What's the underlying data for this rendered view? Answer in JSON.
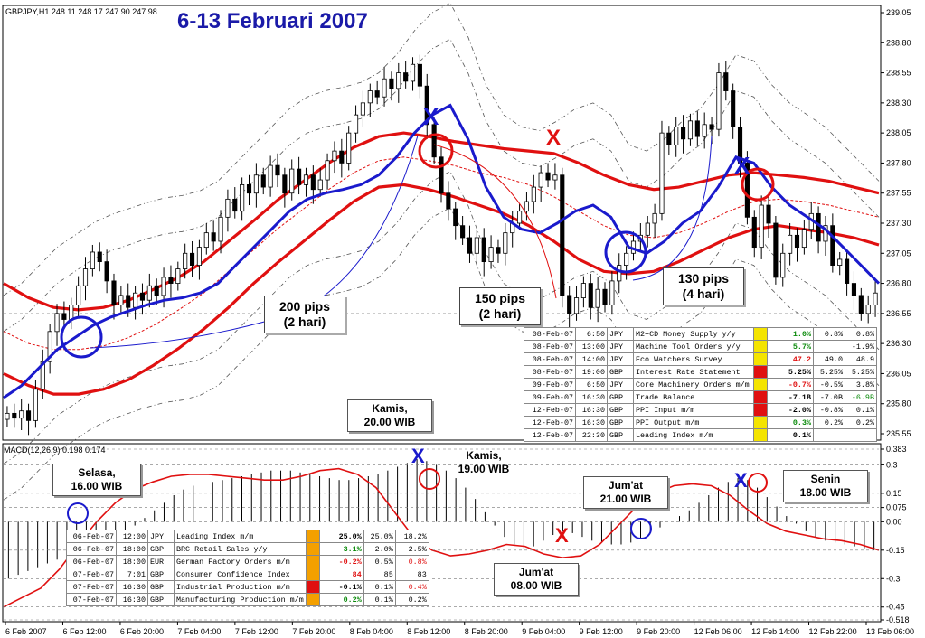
{
  "header": {
    "symbol_info": "GBPJPY,H1  248.11 248.17 247.90 247.98",
    "title": "6-13 Februari 2007",
    "macd_info": "MACD(12,26,9) 0.198 0.174"
  },
  "colors": {
    "price_axis_bg": "#ffffff",
    "candle_bull": "#ffffff",
    "candle_bear": "#000000",
    "ma_blue": "#1a1acc",
    "ma_red": "#e01010",
    "bands": "#555555",
    "macd_signal": "#e01010",
    "hist": "#000000",
    "marker_x_blue": "#1a1acc",
    "marker_x_red": "#e01010"
  },
  "chart_data": {
    "type": "candlestick",
    "price_axis": {
      "ticks": [
        "239.05",
        "238.80",
        "238.55",
        "238.30",
        "238.05",
        "237.80",
        "237.55",
        "237.30",
        "237.05",
        "236.80",
        "236.55",
        "236.30",
        "236.05",
        "235.80",
        "235.55"
      ],
      "ylim": [
        235.55,
        239.05
      ]
    },
    "macd_axis": {
      "ticks": [
        "0.383",
        "0.3",
        "0.15",
        "0.075",
        "0.00",
        "-0.15",
        "-0.3",
        "-0.45",
        "-0.518"
      ],
      "ylim": [
        -0.518,
        0.383
      ]
    },
    "time_axis": {
      "labels": [
        "6 Feb 2007",
        "6 Feb 12:00",
        "6 Feb 20:00",
        "7 Feb 04:00",
        "7 Feb 12:00",
        "7 Feb 20:00",
        "8 Feb 04:00",
        "8 Feb 12:00",
        "8 Feb 20:00",
        "9 Feb 04:00",
        "9 Feb 12:00",
        "9 Feb 20:00",
        "12 Feb 06:00",
        "12 Feb 14:00",
        "12 Feb 22:00",
        "13 Feb 06:00"
      ]
    },
    "candles_close": [
      235.72,
      235.68,
      235.74,
      235.66,
      235.92,
      236.15,
      236.4,
      236.55,
      236.5,
      236.62,
      236.78,
      236.92,
      237.06,
      236.98,
      236.82,
      236.62,
      236.7,
      236.6,
      236.72,
      236.66,
      236.78,
      236.7,
      236.85,
      236.8,
      236.92,
      237.05,
      236.95,
      237.1,
      237.22,
      237.15,
      237.35,
      237.5,
      237.4,
      237.62,
      237.55,
      237.7,
      237.6,
      237.78,
      237.7,
      237.55,
      237.75,
      237.62,
      237.7,
      237.58,
      237.66,
      237.82,
      237.9,
      237.8,
      238.05,
      238.2,
      238.3,
      238.4,
      238.35,
      238.5,
      238.42,
      238.55,
      238.48,
      238.62,
      238.44,
      238.12,
      237.85,
      237.55,
      237.42,
      237.28,
      237.18,
      237.05,
      237.18,
      236.98,
      237.1,
      237.05,
      237.22,
      237.3,
      237.4,
      237.48,
      237.6,
      237.72,
      237.66,
      237.7,
      236.7,
      236.55,
      236.68,
      236.8,
      236.6,
      236.75,
      236.62,
      236.82,
      236.95,
      237.05,
      237.15,
      237.2,
      237.3,
      237.38,
      238.05,
      237.95,
      238.1,
      238.0,
      238.15,
      238.02,
      238.12,
      238.08,
      238.55,
      238.4,
      238.1,
      237.8,
      237.35,
      237.1,
      237.45,
      237.3,
      236.85,
      237.05,
      237.2,
      237.1,
      237.25,
      237.38,
      237.15,
      237.28,
      236.95,
      237.0,
      236.8,
      236.7,
      236.55,
      236.62,
      236.72
    ],
    "ma_blue": [
      235.85,
      235.95,
      236.1,
      236.25,
      236.35,
      236.45,
      236.52,
      236.57,
      236.62,
      236.66,
      236.68,
      236.72,
      236.8,
      236.95,
      237.1,
      237.25,
      237.4,
      237.5,
      237.55,
      237.58,
      237.62,
      237.7,
      237.85,
      238.05,
      238.2,
      238.28,
      238.0,
      237.6,
      237.35,
      237.25,
      237.22,
      237.3,
      237.4,
      237.45,
      237.35,
      237.1,
      237.05,
      237.15,
      237.3,
      237.4,
      237.6,
      237.85,
      237.8,
      237.6,
      237.45,
      237.35,
      237.25,
      237.1,
      236.95,
      236.8
    ],
    "ma_red_upper": [
      236.8,
      236.68,
      236.6,
      236.58,
      236.6,
      236.66,
      236.75,
      236.85,
      236.98,
      237.15,
      237.32,
      237.5,
      237.65,
      237.8,
      237.93,
      238.02,
      238.05,
      238.02,
      237.98,
      237.95,
      237.92,
      237.9,
      237.88,
      237.8,
      237.7,
      237.62,
      237.58,
      237.6,
      237.65,
      237.7,
      237.72,
      237.7,
      237.68,
      237.65,
      237.6,
      237.55
    ],
    "ma_red_mid": [
      236.4,
      236.3,
      236.25,
      236.25,
      236.28,
      236.35,
      236.45,
      236.58,
      236.72,
      236.9,
      237.08,
      237.26,
      237.42,
      237.58,
      237.72,
      237.82,
      237.85,
      237.82,
      237.78,
      237.72,
      237.68,
      237.62,
      237.52,
      237.4,
      237.28,
      237.2,
      237.18,
      237.22,
      237.3,
      237.4,
      237.48,
      237.5,
      237.48,
      237.45,
      237.4,
      237.35
    ],
    "ma_red_lower": [
      236.05,
      235.95,
      235.88,
      235.88,
      235.92,
      236.0,
      236.12,
      236.26,
      236.42,
      236.6,
      236.8,
      236.98,
      237.15,
      237.32,
      237.48,
      237.6,
      237.62,
      237.58,
      237.52,
      237.45,
      237.38,
      237.28,
      237.15,
      237.0,
      236.9,
      236.88,
      236.9,
      236.98,
      237.08,
      237.18,
      237.25,
      237.28,
      237.25,
      237.22,
      237.18,
      237.12
    ],
    "macd_hist": [
      -0.3,
      -0.28,
      -0.26,
      -0.24,
      -0.22,
      -0.2,
      -0.18,
      -0.16,
      -0.14,
      -0.12,
      -0.1,
      -0.08,
      -0.05,
      -0.02,
      0.02,
      0.06,
      0.1,
      0.14,
      0.17,
      0.19,
      0.2,
      0.21,
      0.22,
      0.23,
      0.24,
      0.25,
      0.26,
      0.27,
      0.27,
      0.27,
      0.26,
      0.25,
      0.24,
      0.23,
      0.22,
      0.22,
      0.23,
      0.24,
      0.25,
      0.27,
      0.29,
      0.31,
      0.33,
      0.32,
      0.3,
      0.27,
      0.23,
      0.18,
      0.12,
      0.05,
      -0.02,
      -0.08,
      -0.12,
      -0.14,
      -0.13,
      -0.1,
      -0.07,
      -0.05,
      -0.06,
      -0.08,
      -0.1,
      -0.11,
      -0.12,
      -0.12,
      -0.11,
      -0.09,
      -0.06,
      -0.03,
      0.0,
      0.03,
      0.06,
      0.1,
      0.14,
      0.18,
      0.21,
      0.23,
      0.22,
      0.18,
      0.13,
      0.08,
      0.03,
      -0.01,
      -0.05,
      -0.08,
      -0.1,
      -0.11,
      -0.12,
      -0.13,
      -0.14,
      -0.15
    ],
    "macd_signal": [
      -0.45,
      -0.4,
      -0.35,
      -0.25,
      -0.12,
      0.0,
      0.1,
      0.17,
      0.21,
      0.24,
      0.25,
      0.25,
      0.24,
      0.23,
      0.22,
      0.22,
      0.24,
      0.27,
      0.28,
      0.25,
      0.18,
      0.05,
      -0.08,
      -0.15,
      -0.18,
      -0.17,
      -0.15,
      -0.12,
      -0.13,
      -0.17,
      -0.19,
      -0.18,
      -0.12,
      -0.02,
      0.08,
      0.15,
      0.19,
      0.2,
      0.19,
      0.14,
      0.06,
      -0.01,
      -0.05,
      -0.07,
      -0.09,
      -0.1,
      -0.12,
      -0.15
    ]
  },
  "annotations": {
    "pips_200": [
      "200 pips",
      "(2 hari)"
    ],
    "pips_150": [
      "150 pips",
      "(2 hari)"
    ],
    "pips_130": [
      "130 pips",
      "(4 hari)"
    ],
    "kamis_20": [
      "Kamis,",
      "20.00 WIB"
    ],
    "selasa_16": [
      "Selasa,",
      "16.00 WIB"
    ],
    "kamis_19": [
      "Kamis,",
      "19.00 WIB"
    ],
    "jumat_21": [
      "Jum'at",
      "21.00 WIB"
    ],
    "senin_18": [
      "Senin",
      "18.00 WIB"
    ],
    "jumat_08": [
      "Jum'at",
      "08.00 WIB"
    ],
    "x_mark": "X"
  },
  "calendar_top": [
    {
      "date": "08-Feb-07",
      "time": "6:50",
      "cur": "JPY",
      "event": "M2+CD Money Supply y/y",
      "actual": "1.0%",
      "forecast": "0.8%",
      "prev": "0.8%",
      "color": "#f4e400"
    },
    {
      "date": "08-Feb-07",
      "time": "13:00",
      "cur": "JPY",
      "event": "Machine Tool Orders y/y",
      "actual": "5.7%",
      "forecast": "",
      "prev": "-1.9%",
      "color": "#f4e400"
    },
    {
      "date": "08-Feb-07",
      "time": "14:00",
      "cur": "JPY",
      "event": "Eco Watchers Survey",
      "actual": "47.2",
      "forecast": "49.0",
      "prev": "48.9",
      "color": "#f4e400"
    },
    {
      "date": "08-Feb-07",
      "time": "19:00",
      "cur": "GBP",
      "event": "Interest Rate Statement",
      "actual": "5.25%",
      "forecast": "5.25%",
      "prev": "5.25%",
      "color": "#e01010"
    },
    {
      "date": "09-Feb-07",
      "time": "6:50",
      "cur": "JPY",
      "event": "Core Machinery Orders m/m",
      "actual": "-0.7%",
      "forecast": "-0.5%",
      "prev": "3.8%",
      "color": "#f4e400"
    },
    {
      "date": "09-Feb-07",
      "time": "16:30",
      "cur": "GBP",
      "event": "Trade Balance",
      "actual": "-7.1B",
      "forecast": "-7.0B",
      "prev": "-6.9B",
      "color": "#e01010"
    },
    {
      "date": "12-Feb-07",
      "time": "16:30",
      "cur": "GBP",
      "event": "PPI Input m/m",
      "actual": "-2.0%",
      "forecast": "-0.8%",
      "prev": "0.1%",
      "color": "#e01010"
    },
    {
      "date": "12-Feb-07",
      "time": "16:30",
      "cur": "GBP",
      "event": "PPI Output m/m",
      "actual": "0.3%",
      "forecast": "0.2%",
      "prev": "0.2%",
      "color": "#f4e400"
    },
    {
      "date": "12-Feb-07",
      "time": "22:30",
      "cur": "GBP",
      "event": "Leading Index m/m",
      "actual": "0.1%",
      "forecast": "",
      "prev": "",
      "color": "#f4e400"
    }
  ],
  "calendar_bottom": [
    {
      "date": "06-Feb-07",
      "time": "12:00",
      "cur": "JPY",
      "event": "Leading Index m/m",
      "actual": "25.0%",
      "forecast": "25.0%",
      "prev": "18.2%",
      "color": "#f4a000"
    },
    {
      "date": "06-Feb-07",
      "time": "18:00",
      "cur": "GBP",
      "event": "BRC Retail Sales y/y",
      "actual": "3.1%",
      "forecast": "2.0%",
      "prev": "2.5%",
      "color": "#f4a000"
    },
    {
      "date": "06-Feb-07",
      "time": "18:00",
      "cur": "EUR",
      "event": "German Factory Orders m/m",
      "actual": "-0.2%",
      "forecast": "0.5%",
      "prev": "0.8%",
      "color": "#f4a000"
    },
    {
      "date": "07-Feb-07",
      "time": "7:01",
      "cur": "GBP",
      "event": "Consumer Confidence Index",
      "actual": "84",
      "forecast": "85",
      "prev": "83",
      "color": "#f4a000"
    },
    {
      "date": "07-Feb-07",
      "time": "16:30",
      "cur": "GBP",
      "event": "Industrial Production m/m",
      "actual": "-0.1%",
      "forecast": "0.1%",
      "prev": "0.4%",
      "color": "#e01010"
    },
    {
      "date": "07-Feb-07",
      "time": "16:30",
      "cur": "GBP",
      "event": "Manufacturing Production m/m",
      "actual": "0.2%",
      "forecast": "0.1%",
      "prev": "0.2%",
      "color": "#f4a000"
    }
  ]
}
